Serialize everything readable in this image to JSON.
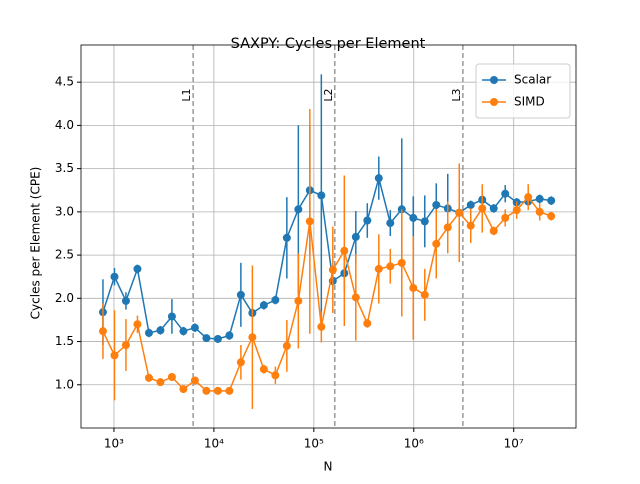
{
  "chart_data": {
    "type": "errorbar-line",
    "title": "SAXPY: Cycles per Element",
    "xlabel": "N",
    "ylabel": "Cycles per Element (CPE)",
    "xscale": "log",
    "grid": true,
    "legend": "upper right",
    "x": [
      776,
      1012,
      1318,
      1718,
      2239,
      2917,
      3802,
      4955,
      6457,
      8414,
      10965,
      14289,
      18621,
      24266,
      31623,
      41210,
      53703,
      69984,
      91201,
      118850,
      154882,
      201837,
      263027,
      342768,
      446684,
      582103,
      758578,
      988553,
      1288250,
      1678804,
      2187762,
      2851018,
      3715352,
      4841724,
      6309573,
      8222426,
      10715193,
      13963684,
      18197009,
      23713737
    ],
    "series": [
      {
        "name": "Scalar",
        "color": "#1f77b4",
        "values": [
          1.84,
          2.25,
          1.97,
          2.34,
          1.6,
          1.63,
          1.79,
          1.62,
          1.66,
          1.54,
          1.53,
          1.57,
          2.04,
          1.83,
          1.92,
          1.98,
          2.7,
          3.03,
          3.25,
          3.19,
          2.2,
          2.29,
          2.71,
          2.9,
          3.39,
          2.87,
          3.03,
          2.93,
          2.89,
          3.08,
          3.04,
          2.99,
          3.08,
          3.14,
          3.04,
          3.21,
          3.11,
          3.12,
          3.15,
          3.13
        ],
        "errors": [
          0.38,
          0.1,
          0.1,
          0.05,
          0.05,
          0.05,
          0.2,
          0.05,
          0.05,
          0.03,
          0.03,
          0.05,
          0.37,
          0.05,
          0.05,
          0.05,
          0.47,
          0.97,
          0.75,
          1.4,
          0.1,
          0.2,
          0.3,
          0.2,
          0.25,
          0.15,
          0.82,
          0.25,
          0.3,
          0.25,
          0.4,
          0.1,
          0.05,
          0.1,
          0.05,
          0.1,
          0.05,
          0.05,
          0.05,
          0.05
        ]
      },
      {
        "name": "SIMD",
        "color": "#ff7f0e",
        "values": [
          1.62,
          1.34,
          1.46,
          1.7,
          1.08,
          1.03,
          1.09,
          0.95,
          1.05,
          0.93,
          0.93,
          0.93,
          1.26,
          1.55,
          1.18,
          1.11,
          1.45,
          1.97,
          2.89,
          1.67,
          2.33,
          2.55,
          2.01,
          1.71,
          2.34,
          2.37,
          2.41,
          2.12,
          2.04,
          2.63,
          2.82,
          2.99,
          2.84,
          3.04,
          2.78,
          2.93,
          3.02,
          3.17,
          3.0,
          2.95
        ],
        "errors": [
          0.32,
          0.52,
          0.3,
          0.1,
          0.03,
          0.03,
          0.03,
          0.03,
          0.03,
          0.03,
          0.03,
          0.03,
          0.2,
          0.83,
          0.05,
          0.1,
          0.3,
          0.55,
          1.3,
          0.18,
          0.5,
          0.87,
          0.5,
          0.05,
          0.4,
          0.2,
          0.62,
          0.6,
          0.3,
          0.4,
          0.3,
          0.57,
          0.2,
          0.28,
          0.05,
          0.1,
          0.1,
          0.15,
          0.1,
          0.05
        ]
      }
    ],
    "vlines": [
      {
        "x": 6200,
        "label": "L1"
      },
      {
        "x": 162000,
        "label": "L2"
      },
      {
        "x": 3100000,
        "label": "L3"
      }
    ],
    "xlim": [
      468,
      42000000
    ],
    "xticks": [
      {
        "value": 1000,
        "label": "10³"
      },
      {
        "value": 10000,
        "label": "10⁴"
      },
      {
        "value": 100000,
        "label": "10⁵"
      },
      {
        "value": 1000000,
        "label": "10⁶"
      },
      {
        "value": 10000000,
        "label": "10⁷"
      }
    ],
    "ylim": [
      0.5,
      4.93
    ],
    "yticks": [
      {
        "value": 1,
        "label": "1.0"
      },
      1.5,
      {
        "value": 2,
        "label": "2.0"
      },
      2.5,
      {
        "value": 3,
        "label": "3.0"
      },
      3.5,
      {
        "value": 4,
        "label": "4.0"
      },
      4.5
    ]
  }
}
